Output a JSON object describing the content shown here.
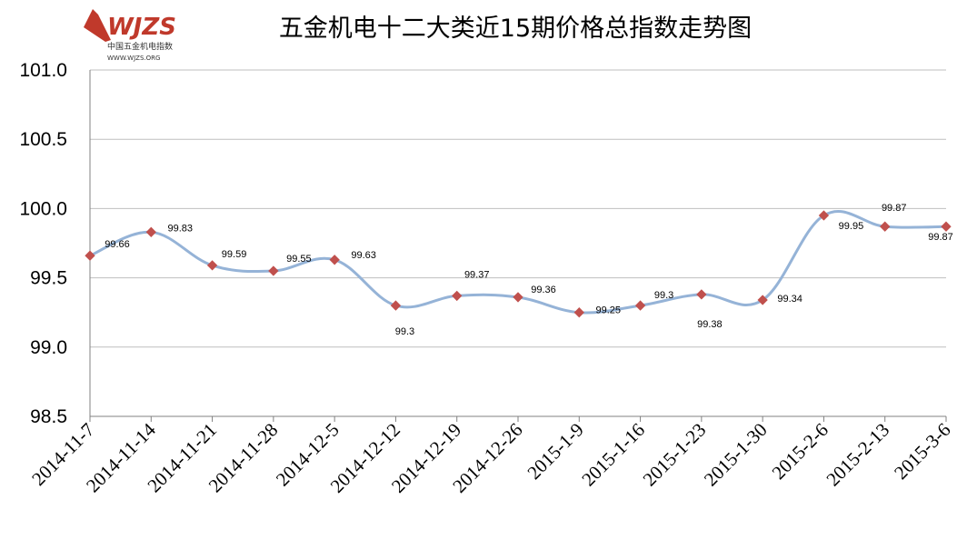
{
  "logo": {
    "brand": "WJZS",
    "name_cn": "中国五金机电指数",
    "site": "WWW.WJZS.ORG",
    "color": "#c0392b"
  },
  "chart_data": {
    "type": "line",
    "title": "五金机电十二大类近15期价格总指数走势图",
    "categories": [
      "2014-11-7",
      "2014-11-14",
      "2014-11-21",
      "2014-11-28",
      "2014-12-5",
      "2014-12-12",
      "2014-12-19",
      "2014-12-26",
      "2015-1-9",
      "2015-1-16",
      "2015-1-23",
      "2015-1-30",
      "2015-2-6",
      "2015-2-13",
      "2015-3-6"
    ],
    "series": [
      {
        "values": [
          99.66,
          99.83,
          99.59,
          99.55,
          99.63,
          99.3,
          99.37,
          99.36,
          99.25,
          99.3,
          99.38,
          99.34,
          99.95,
          99.87,
          99.87
        ]
      }
    ],
    "data_labels": [
      "99.66",
      "99.83",
      "99.59",
      "99.55",
      "99.63",
      "99.3",
      "99.37",
      "99.36",
      "99.25",
      "99.3",
      "99.38",
      "99.34",
      "99.95",
      "99.87",
      "99.87"
    ],
    "y_ticks": [
      "101.0",
      "100.5",
      "100.0",
      "99.5",
      "99.0",
      "98.5"
    ],
    "ylim": [
      98.5,
      101.0
    ],
    "grid": true,
    "line_color": "#95b3d7",
    "marker_color": "#c0504d",
    "gridline_color": "#bfbfbf"
  }
}
